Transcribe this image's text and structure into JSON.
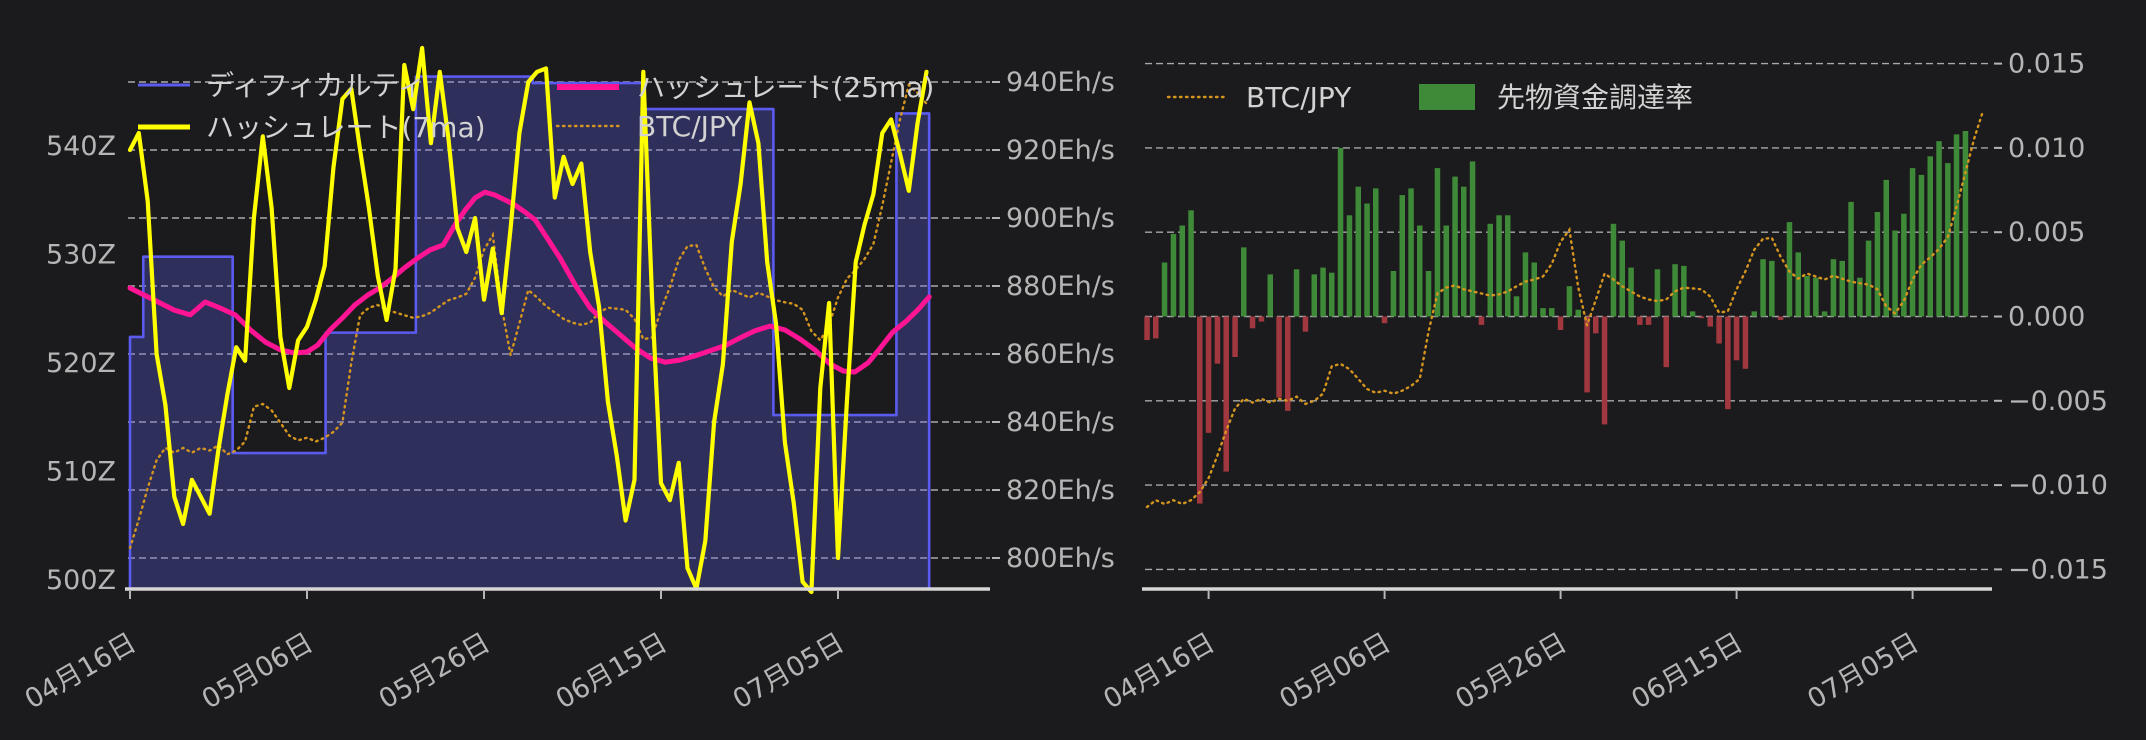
{
  "page": {
    "background": "#1b1b1d",
    "tick_text_color": "#b5b5b5",
    "legend_text_color": "#d2d2d2",
    "grid_color": "#cccccc",
    "axis_line_color": "#d6d6d6"
  },
  "x_axis": {
    "tick_labels": [
      "04月16日",
      "05月06日",
      "05月26日",
      "06月15日",
      "07月05日"
    ],
    "tick_days": [
      7,
      27,
      47,
      67,
      87
    ],
    "note": "day index 0 = 7 days before first tick label"
  },
  "btc_jpy_normalized": {
    "start_day": 0,
    "values": [
      0.012,
      0.028,
      0.019,
      0.028,
      0.019,
      0.028,
      0.047,
      0.08,
      0.133,
      0.192,
      0.244,
      0.267,
      0.258,
      0.267,
      0.258,
      0.267,
      0.262,
      0.272,
      0.255,
      0.262,
      0.279,
      0.344,
      0.349,
      0.337,
      0.314,
      0.29,
      0.281,
      0.286,
      0.279,
      0.286,
      0.297,
      0.314,
      0.426,
      0.515,
      0.529,
      0.534,
      0.525,
      0.52,
      0.515,
      0.51,
      0.513,
      0.52,
      0.532,
      0.543,
      0.548,
      0.555,
      0.585,
      0.637,
      0.665,
      0.53,
      0.44,
      0.5,
      0.562,
      0.548,
      0.532,
      0.52,
      0.508,
      0.501,
      0.497,
      0.501,
      0.52,
      0.529,
      0.527,
      0.525,
      0.508,
      0.47,
      0.473,
      0.525,
      0.567,
      0.618,
      0.644,
      0.646,
      0.602,
      0.567,
      0.55,
      0.562,
      0.555,
      0.548,
      0.557,
      0.55,
      0.543,
      0.539,
      0.536,
      0.525,
      0.485,
      0.468,
      0.497,
      0.548,
      0.583,
      0.6,
      0.62,
      0.648,
      0.72,
      0.8,
      0.88,
      0.945,
      0.93,
      0.91
    ]
  },
  "chart_data": [
    {
      "id": "hashrate_difficulty",
      "type": "line",
      "legend": [
        "ディフィカルティ",
        "ハッシュレート(7ma)",
        "ハッシュレート(25ma)",
        "BTC/JPY"
      ],
      "left_axis": {
        "unit": "Z",
        "tick_labels": [
          "500Z",
          "510Z",
          "520Z",
          "530Z",
          "540Z"
        ],
        "tick_values": [
          500,
          510,
          520,
          530,
          540
        ]
      },
      "right_axis": {
        "unit": "Eh/s",
        "tick_labels": [
          "800Eh/s",
          "820Eh/s",
          "840Eh/s",
          "860Eh/s",
          "880Eh/s",
          "900Eh/s",
          "920Eh/s",
          "940Eh/s"
        ],
        "tick_values": [
          800,
          820,
          840,
          860,
          880,
          900,
          920,
          940
        ]
      },
      "series": [
        {
          "name": "ディフィカルティ",
          "style": "step-area",
          "axis": "left",
          "unit": "Z",
          "color": "#5b5bf0",
          "fill": "rgba(95,95,235,0.30)",
          "steps": [
            [
              7,
              522.4
            ],
            [
              8.5,
              529.8
            ],
            [
              18.6,
              511.7
            ],
            [
              29.1,
              522.8
            ],
            [
              39.3,
              546.4
            ],
            [
              52.5,
              545.8
            ],
            [
              65,
              543.4
            ],
            [
              79.7,
              515.2
            ],
            [
              93.6,
              543.0
            ]
          ],
          "end_day": 97.3
        },
        {
          "name": "ハッシュレート(7ma)",
          "style": "line",
          "axis": "right",
          "unit": "Eh/s",
          "color": "#ffff00",
          "start_day": 7,
          "daily_values": [
            920,
            925,
            905,
            860,
            845,
            818,
            810,
            823,
            818,
            813,
            832,
            848,
            862,
            858,
            900,
            924,
            903,
            865,
            850,
            864,
            868,
            876,
            886,
            915,
            935,
            938,
            920,
            903,
            883,
            870,
            885,
            945,
            932,
            950,
            922,
            943,
            923,
            897,
            890,
            900,
            876,
            891,
            872,
            897,
            925,
            940,
            943,
            944,
            906,
            918,
            910,
            916,
            890,
            874,
            846,
            830,
            811,
            823,
            943,
            876,
            822,
            817,
            828,
            797,
            791,
            805,
            840,
            857,
            893,
            910,
            934,
            922,
            887,
            869,
            834,
            816,
            793,
            790,
            850,
            875,
            800,
            846,
            887,
            898,
            907,
            925,
            929,
            919,
            908,
            928,
            943
          ]
        },
        {
          "name": "ハッシュレート(25ma)",
          "style": "line",
          "axis": "right",
          "unit": "Eh/s",
          "color": "#ff1493",
          "points": [
            [
              7,
              879.4
            ],
            [
              10.4,
              875
            ],
            [
              12,
              872.9
            ],
            [
              13.8,
              871.5
            ],
            [
              15.5,
              875.3
            ],
            [
              17.2,
              873.5
            ],
            [
              18.9,
              871.5
            ],
            [
              20.6,
              867.1
            ],
            [
              22.3,
              863.5
            ],
            [
              24,
              861.2
            ],
            [
              25.6,
              860.3
            ],
            [
              27,
              860.6
            ],
            [
              28.2,
              862.6
            ],
            [
              29.6,
              867.1
            ],
            [
              31,
              870.6
            ],
            [
              32.4,
              874.4
            ],
            [
              33.9,
              877.4
            ],
            [
              35.2,
              879.4
            ],
            [
              36.7,
              882.4
            ],
            [
              38,
              885.3
            ],
            [
              39.5,
              888.2
            ],
            [
              40.9,
              890.6
            ],
            [
              42.4,
              892.1
            ],
            [
              43.7,
              897.9
            ],
            [
              44.9,
              902.4
            ],
            [
              46,
              905.9
            ],
            [
              47.1,
              907.6
            ],
            [
              48.2,
              906.8
            ],
            [
              49.4,
              905.3
            ],
            [
              50.5,
              903.8
            ],
            [
              51.6,
              901.8
            ],
            [
              52.8,
              899.4
            ],
            [
              53.9,
              895
            ],
            [
              55.6,
              888.2
            ],
            [
              57.3,
              880.3
            ],
            [
              59,
              873.5
            ],
            [
              60.7,
              869.4
            ],
            [
              62.4,
              865.6
            ],
            [
              64.1,
              861.8
            ],
            [
              65.8,
              858.8
            ],
            [
              67.5,
              857.6
            ],
            [
              69.1,
              858.2
            ],
            [
              70.8,
              859.4
            ],
            [
              72.5,
              860.9
            ],
            [
              74.2,
              862.4
            ],
            [
              75.9,
              864.7
            ],
            [
              77.6,
              866.8
            ],
            [
              79.3,
              868.2
            ],
            [
              81,
              867.1
            ],
            [
              82.7,
              864.4
            ],
            [
              84.4,
              861.2
            ],
            [
              86.1,
              857.1
            ],
            [
              87.6,
              855
            ],
            [
              88.9,
              854.7
            ],
            [
              90.4,
              857.4
            ],
            [
              91.7,
              861.5
            ],
            [
              93.2,
              866.5
            ],
            [
              94.6,
              869.4
            ],
            [
              96,
              872.9
            ],
            [
              97.3,
              876.8
            ]
          ]
        },
        {
          "name": "BTC/JPY",
          "style": "dotted-line",
          "axis": "none",
          "color": "#d4951e",
          "source": "btc_jpy_normalized",
          "start_day": 7,
          "norm_map": {
            "v_min": 0.08,
            "y_min": 548,
            "v_max": 0.945,
            "y_max": 85
          }
        }
      ]
    },
    {
      "id": "funding_rate",
      "type": "bar",
      "legend": [
        "BTC/JPY",
        "先物資金調達率"
      ],
      "right_axis": {
        "unit": "",
        "tick_labels": [
          "0.015",
          "0.010",
          "0.005",
          "0.000",
          "−0.005",
          "−0.010",
          "−0.015"
        ],
        "tick_values": [
          0.015,
          0.01,
          0.005,
          0,
          -0.005,
          -0.01,
          -0.015
        ]
      },
      "series": [
        {
          "name": "BTC/JPY",
          "style": "dotted-line",
          "color": "#d4951e",
          "source": "btc_jpy_normalized",
          "start_day": 0,
          "end_day": 95,
          "norm_map": {
            "v_min": 0.012,
            "y_min": 507,
            "v_max": 0.945,
            "y_max": 111
          }
        },
        {
          "name": "先物資金調達率",
          "style": "bar",
          "color_positive": "#3f8a38",
          "color_negative": "#a1383f",
          "start_day": 0,
          "daily_values": [
            -0.0014,
            -0.0013,
            0.0032,
            0.0049,
            0.0054,
            0.0063,
            -0.0111,
            -0.0069,
            -0.0028,
            -0.0092,
            -0.0024,
            0.0041,
            -0.0007,
            -0.0003,
            0.0025,
            -0.0048,
            -0.0056,
            0.0028,
            -0.0009,
            0.0025,
            0.0029,
            0.0026,
            0.01,
            0.006,
            0.0077,
            0.0067,
            0.0076,
            -0.0004,
            0.0027,
            0.0072,
            0.0076,
            0.0054,
            0.0027,
            0.0088,
            0.0054,
            0.0083,
            0.0077,
            0.0092,
            -0.0005,
            0.0055,
            0.006,
            0.006,
            0.0012,
            0.0038,
            0.0032,
            0.0005,
            0.0005,
            -0.0008,
            0.0018,
            0.0004,
            -0.0045,
            -0.001,
            -0.0064,
            0.0055,
            0.0045,
            0.0029,
            -0.0005,
            -0.0005,
            0.0028,
            -0.003,
            0.0031,
            0.003,
            0.0003,
            -0.0001,
            -0.0006,
            -0.0016,
            -0.0055,
            -0.0026,
            -0.0031,
            0.0003,
            0.0034,
            0.0033,
            -0.0002,
            0.0056,
            0.0038,
            0.0024,
            0.0023,
            0.0003,
            0.0034,
            0.0033,
            0.0068,
            0.0023,
            0.0045,
            0.0062,
            0.0081,
            0.0051,
            0.0061,
            0.0088,
            0.0084,
            0.0095,
            0.0104,
            0.0091,
            0.0108,
            0.011
          ]
        }
      ]
    }
  ]
}
